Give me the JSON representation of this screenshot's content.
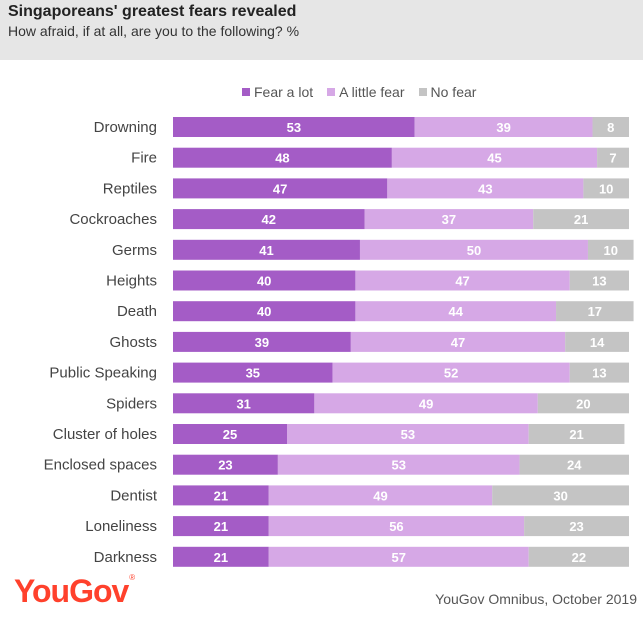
{
  "header": {
    "title": "Singaporeans' greatest fears revealed",
    "subtitle": "How afraid, if at all, are you to the following? %"
  },
  "legend": [
    {
      "label": "Fear a lot",
      "color": "#a45cc6"
    },
    {
      "label": "A little fear",
      "color": "#d6a8e6"
    },
    {
      "label": "No fear",
      "color": "#c4c4c4"
    }
  ],
  "chart_data": {
    "type": "bar",
    "orientation": "horizontal",
    "stacked": true,
    "title": "Singaporeans' greatest fears revealed",
    "subtitle": "How afraid, if at all, are you to the following? %",
    "categories": [
      "Drowning",
      "Fire",
      "Reptiles",
      "Cockroaches",
      "Germs",
      "Heights",
      "Death",
      "Ghosts",
      "Public Speaking",
      "Spiders",
      "Cluster of holes",
      "Enclosed spaces",
      "Dentist",
      "Loneliness",
      "Darkness"
    ],
    "series": [
      {
        "name": "Fear a lot",
        "color": "#a45cc6",
        "values": [
          53,
          48,
          47,
          42,
          41,
          40,
          40,
          39,
          35,
          31,
          25,
          23,
          21,
          21,
          21
        ]
      },
      {
        "name": "A little fear",
        "color": "#d6a8e6",
        "values": [
          39,
          45,
          43,
          37,
          50,
          47,
          44,
          47,
          52,
          49,
          53,
          53,
          49,
          56,
          57
        ]
      },
      {
        "name": "No fear",
        "color": "#c4c4c4",
        "values": [
          8,
          7,
          10,
          21,
          10,
          13,
          17,
          14,
          13,
          20,
          21,
          24,
          30,
          23,
          22
        ]
      }
    ],
    "xlim": [
      0,
      100
    ],
    "legend_position": "top"
  },
  "footer": {
    "logo_text": "YouGov",
    "logo_mark": "®",
    "source": "YouGov Omnibus, October 2019"
  }
}
